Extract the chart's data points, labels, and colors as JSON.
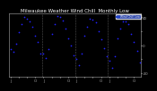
{
  "title": "Milwaukee Weather Wind Chill  Monthly Low",
  "bg_color": "#000000",
  "plot_bg": "#000000",
  "fig_bg": "#000000",
  "dot_color": "#2222ff",
  "dot_size": 1.5,
  "legend_color": "#2244cc",
  "legend_label": "Wind Chill Low",
  "legend_text_color": "#ffffff",
  "ylim": [
    -45,
    45
  ],
  "yticks": [
    -40,
    -20,
    0,
    20,
    40
  ],
  "ytick_labels": [
    "-40",
    "",
    "0",
    "",
    "40"
  ],
  "title_color": "#ffffff",
  "title_fontsize": 4.0,
  "tick_fontsize": 3.0,
  "axis_color": "#aaaaaa",
  "grid_color": "#555555",
  "x": [
    0,
    1,
    2,
    3,
    4,
    5,
    6,
    7,
    8,
    9,
    10,
    11,
    12,
    13,
    14,
    15,
    16,
    17,
    18,
    19,
    20,
    21,
    22,
    23,
    24,
    25,
    26,
    27,
    28,
    29,
    30,
    31,
    32,
    33,
    34,
    35,
    36,
    37,
    38,
    39,
    40,
    41,
    42,
    43,
    44,
    45,
    46,
    47
  ],
  "y": [
    -5,
    -10,
    2,
    18,
    30,
    40,
    38,
    34,
    26,
    14,
    4,
    -12,
    -12,
    -18,
    -6,
    16,
    30,
    42,
    40,
    35,
    24,
    10,
    0,
    -14,
    -20,
    -28,
    -12,
    14,
    26,
    38,
    37,
    32,
    20,
    8,
    -4,
    -16,
    -22,
    -32,
    -16,
    10,
    24,
    34,
    34,
    30,
    16,
    4,
    -8,
    -25
  ],
  "vline_positions": [
    11.5,
    23.5,
    35.5
  ],
  "xtick_positions": [
    0,
    3,
    6,
    9,
    12,
    15,
    18,
    21,
    24,
    27,
    30,
    33,
    36,
    39,
    42,
    45
  ],
  "xtick_labels": [
    "J",
    "",
    "",
    "O",
    "J",
    "",
    "",
    "O",
    "J",
    "",
    "",
    "O",
    "J",
    "",
    "",
    "O"
  ]
}
